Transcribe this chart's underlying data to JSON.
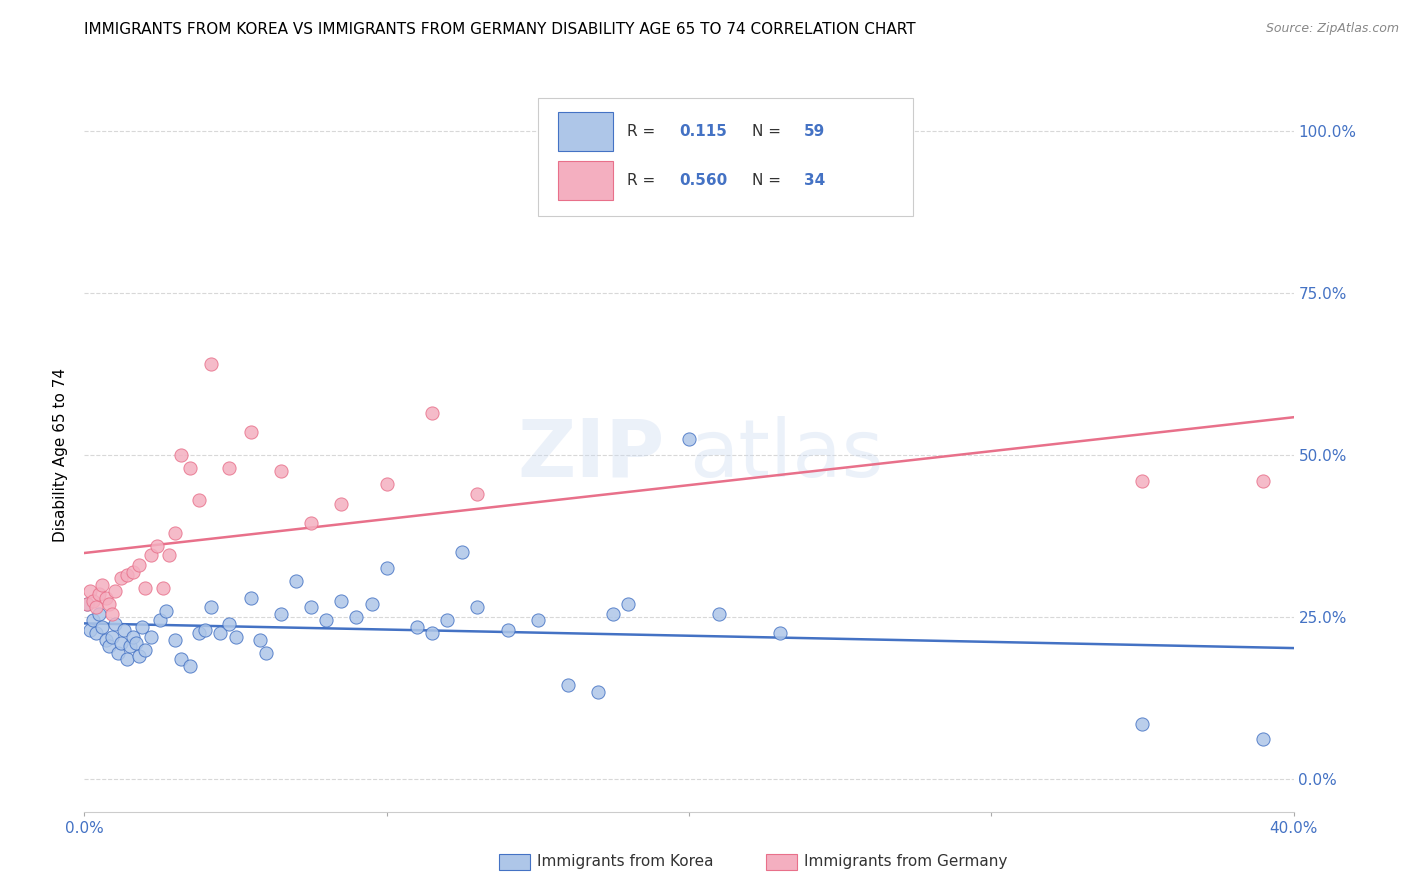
{
  "title": "IMMIGRANTS FROM KOREA VS IMMIGRANTS FROM GERMANY DISABILITY AGE 65 TO 74 CORRELATION CHART",
  "source": "Source: ZipAtlas.com",
  "ylabel_label": "Disability Age 65 to 74",
  "legend_label1": "Immigrants from Korea",
  "legend_label2": "Immigrants from Germany",
  "R1": "0.115",
  "N1": "59",
  "R2": "0.560",
  "N2": "34",
  "color_korea": "#aec6e8",
  "color_germany": "#f4afc0",
  "color_korea_line": "#4472c4",
  "color_germany_line": "#e8708a",
  "color_text_blue": "#4472c4",
  "xlim": [
    0.0,
    0.4
  ],
  "ylim": [
    -0.05,
    1.05
  ],
  "yticks": [
    0.0,
    0.25,
    0.5,
    0.75,
    1.0
  ],
  "ytick_labels": [
    "0.0%",
    "25.0%",
    "50.0%",
    "75.0%",
    "100.0%"
  ],
  "xticks": [
    0.0,
    0.1,
    0.2,
    0.3,
    0.4
  ],
  "xtick_labels": [
    "0.0%",
    "",
    "",
    "",
    "40.0%"
  ],
  "korea_x": [
    0.001,
    0.002,
    0.003,
    0.004,
    0.005,
    0.006,
    0.007,
    0.008,
    0.009,
    0.01,
    0.011,
    0.012,
    0.013,
    0.014,
    0.015,
    0.016,
    0.017,
    0.018,
    0.019,
    0.02,
    0.022,
    0.025,
    0.027,
    0.03,
    0.032,
    0.035,
    0.038,
    0.04,
    0.042,
    0.045,
    0.048,
    0.05,
    0.055,
    0.058,
    0.06,
    0.065,
    0.07,
    0.075,
    0.08,
    0.085,
    0.09,
    0.095,
    0.1,
    0.11,
    0.115,
    0.12,
    0.125,
    0.13,
    0.14,
    0.15,
    0.16,
    0.17,
    0.175,
    0.18,
    0.2,
    0.21,
    0.23,
    0.35,
    0.39
  ],
  "korea_y": [
    0.27,
    0.23,
    0.245,
    0.225,
    0.255,
    0.235,
    0.215,
    0.205,
    0.22,
    0.24,
    0.195,
    0.21,
    0.23,
    0.185,
    0.205,
    0.22,
    0.21,
    0.19,
    0.235,
    0.2,
    0.22,
    0.245,
    0.26,
    0.215,
    0.185,
    0.175,
    0.225,
    0.23,
    0.265,
    0.225,
    0.24,
    0.22,
    0.28,
    0.215,
    0.195,
    0.255,
    0.305,
    0.265,
    0.245,
    0.275,
    0.25,
    0.27,
    0.325,
    0.235,
    0.225,
    0.245,
    0.35,
    0.265,
    0.23,
    0.245,
    0.145,
    0.135,
    0.255,
    0.27,
    0.525,
    0.255,
    0.225,
    0.085,
    0.062
  ],
  "germany_x": [
    0.001,
    0.002,
    0.003,
    0.004,
    0.005,
    0.006,
    0.007,
    0.008,
    0.009,
    0.01,
    0.012,
    0.014,
    0.016,
    0.018,
    0.02,
    0.022,
    0.024,
    0.026,
    0.028,
    0.03,
    0.032,
    0.035,
    0.038,
    0.042,
    0.048,
    0.055,
    0.065,
    0.075,
    0.085,
    0.1,
    0.115,
    0.13,
    0.35,
    0.39
  ],
  "germany_y": [
    0.27,
    0.29,
    0.275,
    0.265,
    0.285,
    0.3,
    0.28,
    0.27,
    0.255,
    0.29,
    0.31,
    0.315,
    0.32,
    0.33,
    0.295,
    0.345,
    0.36,
    0.295,
    0.345,
    0.38,
    0.5,
    0.48,
    0.43,
    0.64,
    0.48,
    0.535,
    0.475,
    0.395,
    0.425,
    0.455,
    0.565,
    0.44,
    0.46,
    0.46
  ],
  "watermark": "ZIPatlas",
  "background_color": "#ffffff",
  "grid_color": "#d8d8d8"
}
